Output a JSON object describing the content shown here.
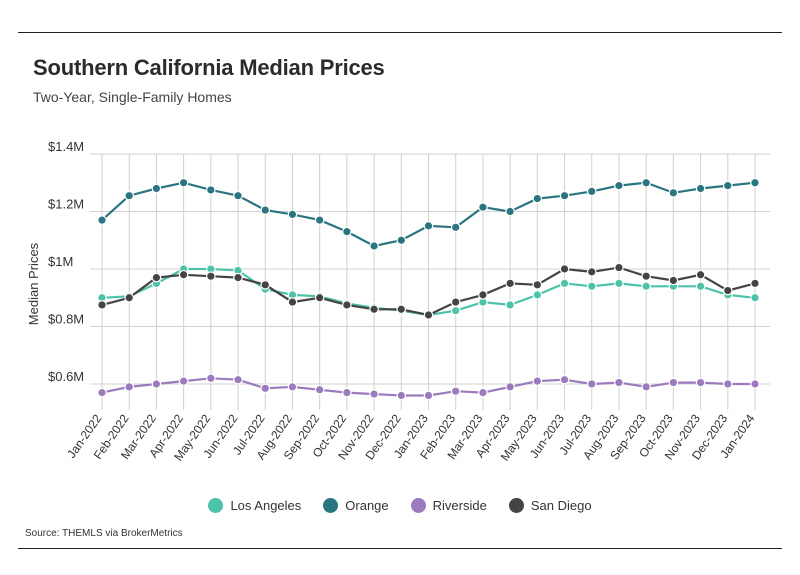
{
  "header": {
    "title": "Southern California Median Prices",
    "subtitle": "Two-Year, Single-Family Homes"
  },
  "footer": {
    "source": "Source:  THEMLS via BrokerMetrics"
  },
  "chart_data": {
    "type": "line",
    "title": "Southern California Median Prices",
    "subtitle": "Two-Year, Single-Family Homes",
    "xlabel": "",
    "ylabel": "Median Prices",
    "ylim": [
      0.5,
      1.4
    ],
    "yticks": [
      0.6,
      0.8,
      1.0,
      1.2,
      1.4
    ],
    "ytick_labels": [
      "$0.6M",
      "$0.8M",
      "$1M",
      "$1.2M",
      "$1.4M"
    ],
    "grid": true,
    "legend_position": "bottom",
    "categories": [
      "Jan-2022",
      "Feb-2022",
      "Mar-2022",
      "Apr-2022",
      "May-2022",
      "Jun-2022",
      "Jul-2022",
      "Aug-2022",
      "Sep-2022",
      "Oct-2022",
      "Nov-2022",
      "Dec-2022",
      "Jan-2023",
      "Feb-2023",
      "Mar-2023",
      "Apr-2023",
      "May-2023",
      "Jun-2023",
      "Jul-2023",
      "Aug-2023",
      "Sep-2023",
      "Oct-2023",
      "Nov-2023",
      "Dec-2023",
      "Jan-2024"
    ],
    "series": [
      {
        "name": "Los Angeles",
        "color": "#4dc2a8",
        "values": [
          0.9,
          0.905,
          0.95,
          1.0,
          1.0,
          0.995,
          0.93,
          0.91,
          0.905,
          0.88,
          0.865,
          0.855,
          0.84,
          0.855,
          0.885,
          0.875,
          0.91,
          0.95,
          0.94,
          0.95,
          0.94,
          0.94,
          0.94,
          0.91,
          0.9
        ]
      },
      {
        "name": "Orange",
        "color": "#2a7580",
        "values": [
          1.17,
          1.255,
          1.28,
          1.3,
          1.275,
          1.255,
          1.205,
          1.19,
          1.17,
          1.13,
          1.08,
          1.1,
          1.15,
          1.145,
          1.215,
          1.2,
          1.245,
          1.255,
          1.27,
          1.29,
          1.3,
          1.265,
          1.28,
          1.29,
          1.3
        ]
      },
      {
        "name": "Riverside",
        "color": "#9b7bbd",
        "values": [
          0.57,
          0.59,
          0.6,
          0.61,
          0.62,
          0.615,
          0.585,
          0.59,
          0.58,
          0.57,
          0.565,
          0.56,
          0.56,
          0.575,
          0.57,
          0.59,
          0.61,
          0.615,
          0.6,
          0.605,
          0.59,
          0.605,
          0.605,
          0.6,
          0.6
        ]
      },
      {
        "name": "San Diego",
        "color": "#444444",
        "values": [
          0.875,
          0.9,
          0.97,
          0.98,
          0.975,
          0.97,
          0.945,
          0.885,
          0.9,
          0.875,
          0.86,
          0.86,
          0.84,
          0.885,
          0.91,
          0.95,
          0.945,
          1.0,
          0.99,
          1.005,
          0.975,
          0.96,
          0.98,
          0.925,
          0.95
        ]
      }
    ]
  }
}
